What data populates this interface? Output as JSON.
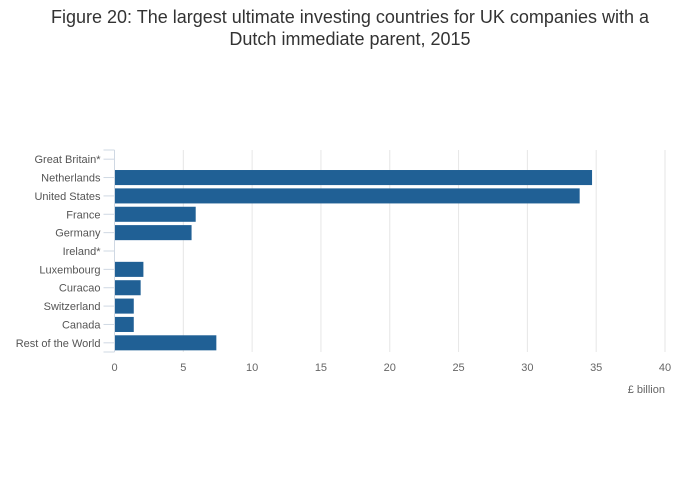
{
  "title_line1": "Figure 20: The largest ultimate investing countries for UK companies with a",
  "title_line2": "Dutch immediate parent, 2015",
  "chart_data": {
    "type": "bar",
    "orientation": "horizontal",
    "title": "Figure 20: The largest ultimate investing countries for UK companies with a Dutch immediate parent, 2015",
    "categories": [
      "Great Britain*",
      "Netherlands",
      "United States",
      "France",
      "Germany",
      "Ireland*",
      "Luxembourg",
      "Curacao",
      "Switzerland",
      "Canada",
      "Rest of the World"
    ],
    "values": [
      0,
      34.7,
      33.8,
      5.9,
      5.6,
      0,
      2.1,
      1.9,
      1.4,
      1.4,
      7.4
    ],
    "xlabel": "£ billion",
    "ylabel": "",
    "xlim": [
      0,
      40
    ],
    "xticks": [
      0,
      5,
      10,
      15,
      20,
      25,
      30,
      35,
      40
    ],
    "grid": true,
    "legend": "none",
    "bar_color": "#206095",
    "grid_color": "#e6e6e6",
    "text_color": "#666666"
  }
}
